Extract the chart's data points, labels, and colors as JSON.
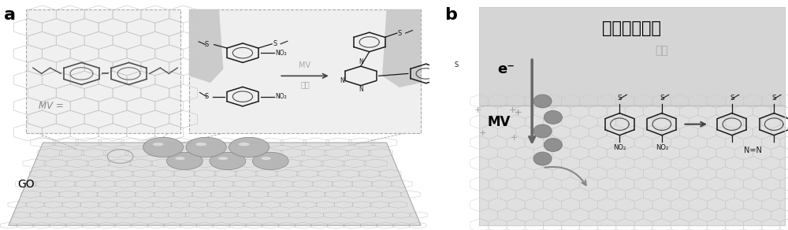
{
  "fig_width": 10.0,
  "fig_height": 2.92,
  "dpi": 100,
  "bg_color": "#ffffff",
  "panel_a_label": "a",
  "panel_b_label": "b",
  "label_fontsize": 16,
  "panel_b_outer_bg": "#ffffff",
  "panel_b_box_bg": "#e8e8e8",
  "panel_b_top_bg": "#d8d8d8",
  "panel_b_bottom_bg": "#e0e0e0",
  "title_chinese": "等离子体金属",
  "title_fontsize": 15,
  "subtitle_chinese": "促进",
  "subtitle_color": "#aaaaaa",
  "subtitle_fontsize": 10,
  "go_label": "GO",
  "go_fontsize": 10,
  "electron_label": "e⁻",
  "electron_fontsize": 13,
  "mv_label_b": "MV",
  "mv_b_fontsize": 12,
  "no2_label": "NO₂",
  "nequalsn_label": "N=N",
  "mv_arrow_label": "MV",
  "jia_su_label": "加速",
  "mv_color": "#aaaaaa",
  "border_color": "#aaaaaa",
  "hex_color_inset": "#c8c8c8",
  "hex_color_b": "#c0c0c0",
  "surface_color": "#d8d8d8",
  "sphere_color": "#b8b8b8",
  "sphere_edge": "#808080",
  "dark_circle_color": "#909090",
  "go_surface_hex_color": "#aaaaaa",
  "grey_shape_color": "#c0c0c0",
  "inset_left_bg": "#f5f5f5",
  "inset_right_bg": "#eeeeee",
  "chem_line_color": "#1a1a1a",
  "arrow_gray": "#808080"
}
